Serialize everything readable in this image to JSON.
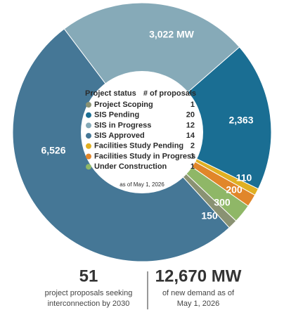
{
  "chart_data": {
    "type": "donut",
    "legend_title": "Project status",
    "count_header": "# of proposals",
    "categories": [
      "Project Scoping",
      "SIS Pending",
      "SIS in Progress",
      "SIS Approved",
      "Facilities Study Pending",
      "Facilities Study in Progress",
      "Under Construction"
    ],
    "proposals": [
      1,
      20,
      12,
      14,
      2,
      1,
      1
    ],
    "values": [
      150,
      2363,
      3022,
      6526,
      110,
      200,
      300
    ],
    "value_labels": [
      "150",
      "2,363",
      "3,022 MW",
      "6,526",
      "110",
      "200",
      "300"
    ],
    "colors": [
      "#8a9273",
      "#1a6e93",
      "#86aab8",
      "#457796",
      "#e0b022",
      "#e1862a",
      "#8fb767"
    ],
    "note": "as of May 1, 2026"
  },
  "summary": {
    "proposals_total": "51",
    "proposals_text": [
      "project proposals seeking",
      "interconnection by 2030"
    ],
    "demand_total": "12,670 MW",
    "demand_text": [
      "of new demand as of",
      "May 1, 2026"
    ]
  }
}
